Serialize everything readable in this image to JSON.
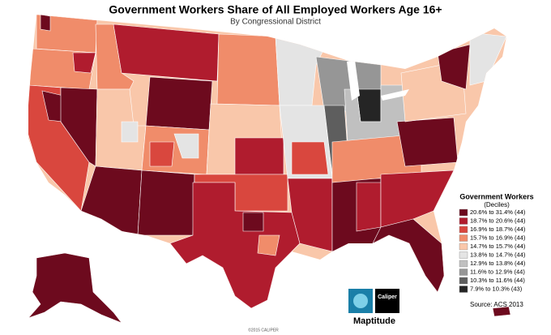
{
  "header": {
    "title": "Government Workers Share of All Employed Workers Age 16+",
    "subtitle": "By Congressional District"
  },
  "legend": {
    "title": "Government Workers",
    "subtitle": "(Deciles)",
    "items": [
      {
        "label": "20.6% to 31.4% (44)",
        "color": "#6d0a1e"
      },
      {
        "label": "18.7% to 20.6% (44)",
        "color": "#b01c2e"
      },
      {
        "label": "16.9% to 18.7% (44)",
        "color": "#d9473e"
      },
      {
        "label": "15.7% to 16.9% (44)",
        "color": "#f08c6a"
      },
      {
        "label": "14.7% to 15.7% (44)",
        "color": "#f9c7aa"
      },
      {
        "label": "13.8% to 14.7% (44)",
        "color": "#e4e4e4"
      },
      {
        "label": "12.9% to 13.8% (44)",
        "color": "#c0c0c0"
      },
      {
        "label": "11.6% to 12.9% (44)",
        "color": "#969696"
      },
      {
        "label": "10.3% to 11.6% (44)",
        "color": "#5e5e5e"
      },
      {
        "label": "7.9% to 10.3% (43)",
        "color": "#252525"
      }
    ],
    "source": "Source: ACS 2013"
  },
  "logo": {
    "product": "Maptitude",
    "brand": "Caliper"
  },
  "footer": {
    "copyright": "©2015 CALIPER"
  }
}
